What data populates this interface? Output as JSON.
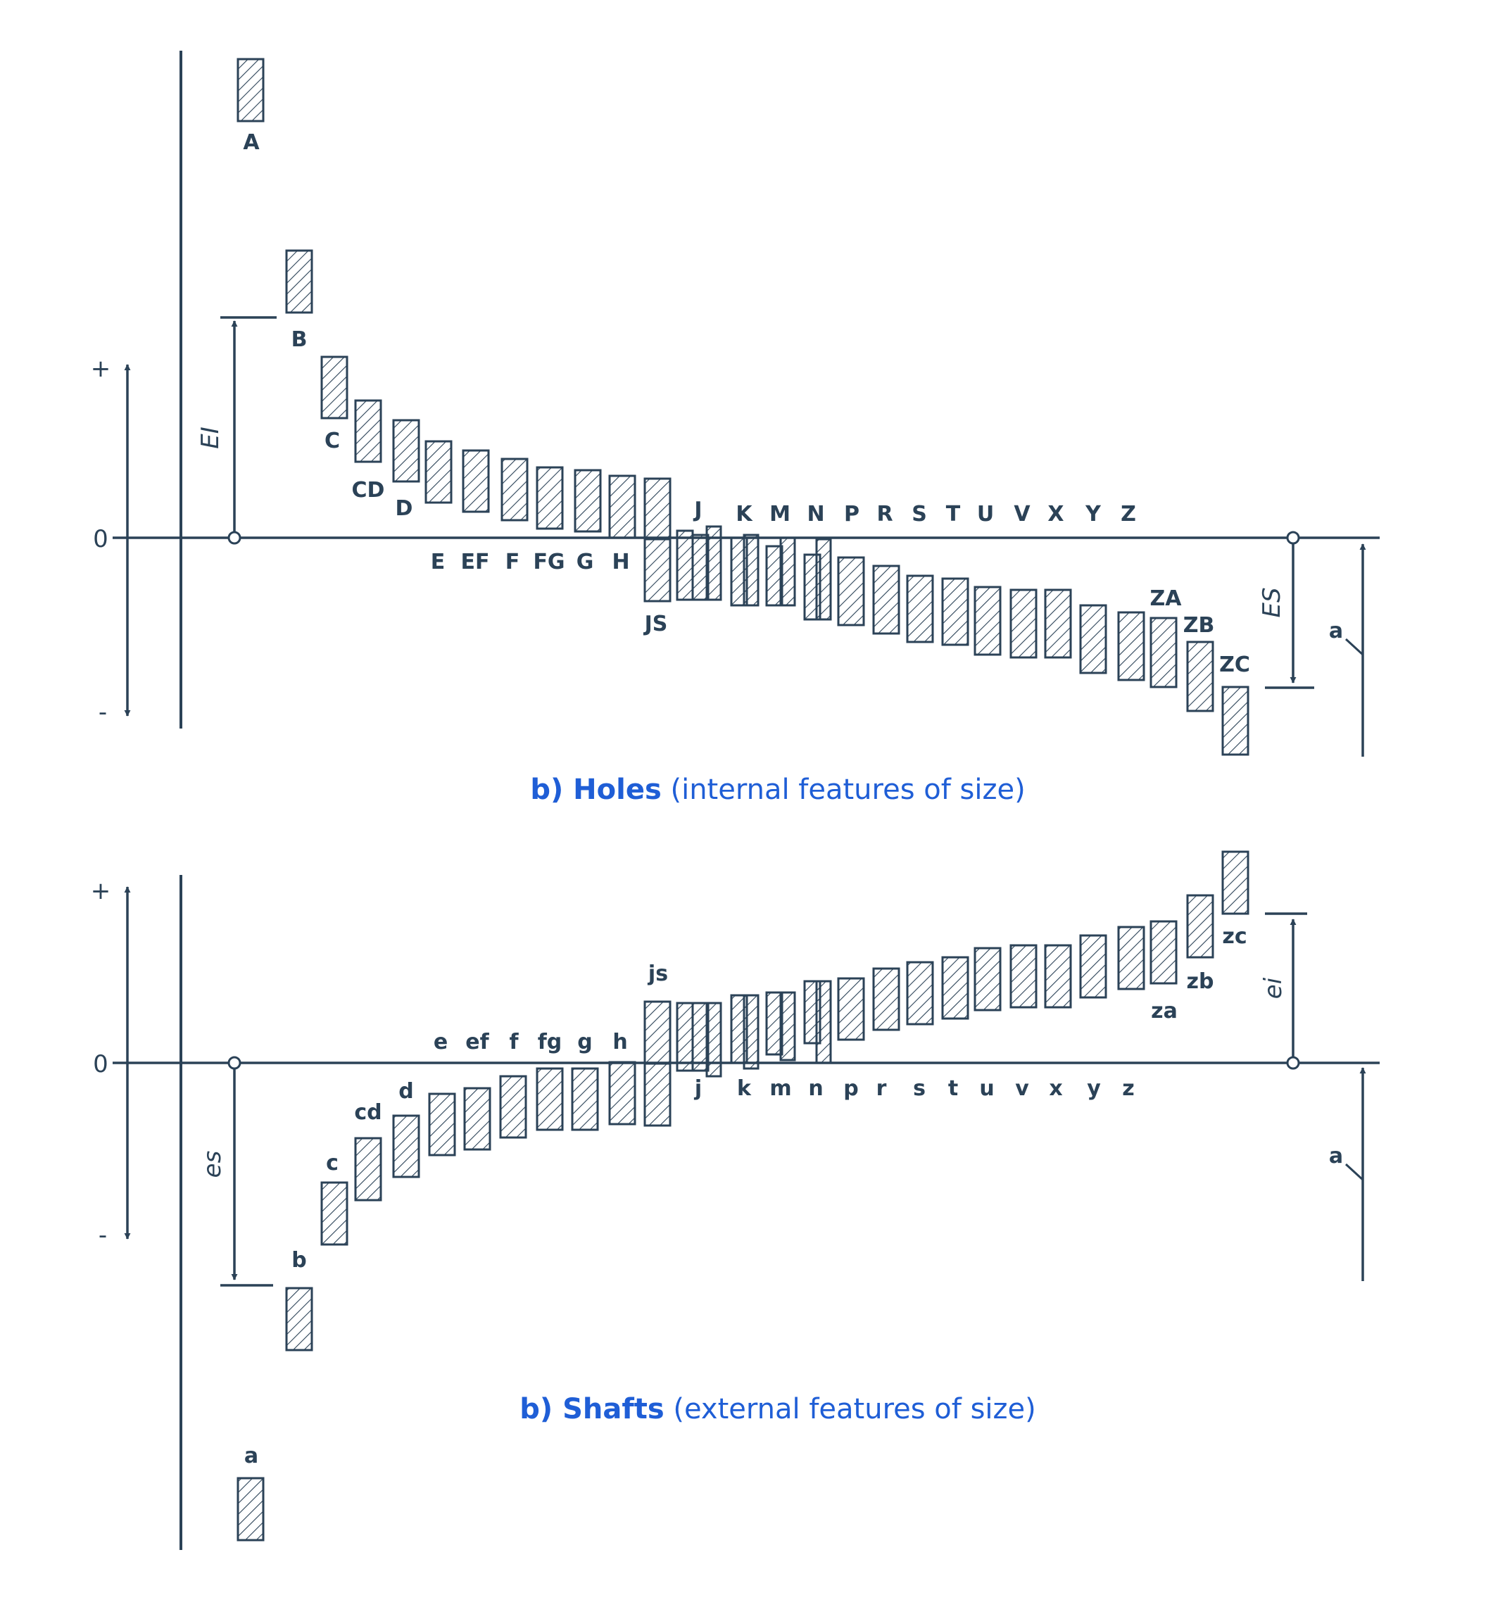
{
  "colors": {
    "ink": "#2b4257",
    "caption": "#1f5ed6"
  },
  "holes": {
    "caption_bold": "b) Holes",
    "caption_rest": " (internal features of size)",
    "axis": {
      "plus": "+",
      "zero": "0",
      "minus": "-"
    },
    "dim_lower": "EI",
    "dim_upper": "ES",
    "note": "a",
    "labels": [
      "A",
      "B",
      "C",
      "CD",
      "D",
      "E",
      "EF",
      "F",
      "FG",
      "G",
      "H",
      "JS",
      "J",
      "K",
      "M",
      "N",
      "P",
      "R",
      "S",
      "T",
      "U",
      "V",
      "X",
      "Y",
      "Z",
      "ZA",
      "ZB",
      "ZC"
    ]
  },
  "shafts": {
    "caption_bold": "b) Shafts",
    "caption_rest": " (external features of size)",
    "axis": {
      "plus": "+",
      "zero": "0",
      "minus": "-"
    },
    "dim_upper": "es",
    "dim_lower": "ei",
    "note": "a",
    "labels": [
      "a",
      "b",
      "c",
      "cd",
      "d",
      "e",
      "ef",
      "f",
      "fg",
      "g",
      "h",
      "js",
      "j",
      "k",
      "m",
      "n",
      "p",
      "r",
      "s",
      "t",
      "u",
      "v",
      "x",
      "y",
      "z",
      "za",
      "zb",
      "zc"
    ]
  }
}
